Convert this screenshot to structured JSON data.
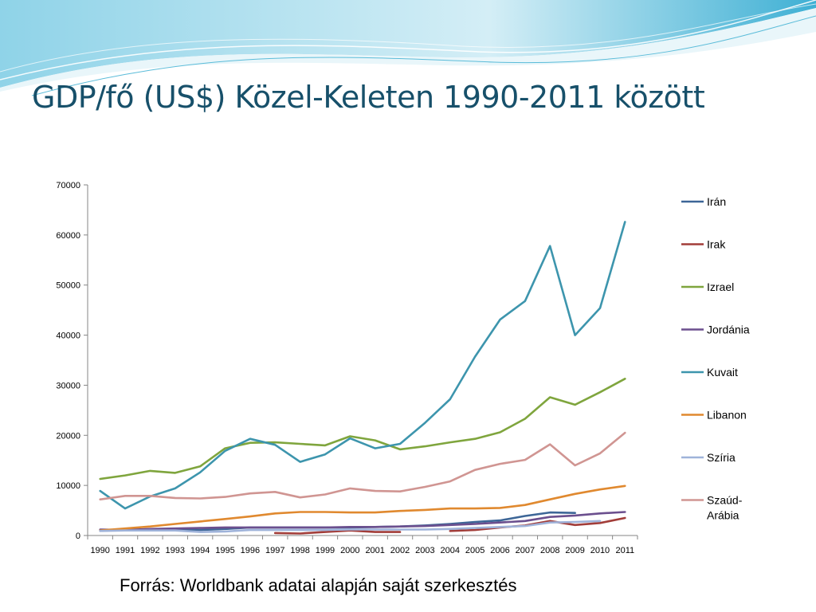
{
  "slide": {
    "title": "GDP/fő (US$) Közel-Keleten 1990-2011 között",
    "source": "Forrás: Worldbank adatai alapján saját szerkesztés"
  },
  "colors": {
    "title": "#17506a",
    "wave_light": "#d4eef6",
    "wave_mid": "#8fd3e8",
    "wave_dark": "#3fb0d4"
  },
  "chart_data": {
    "type": "line",
    "x": [
      "1990",
      "1991",
      "1992",
      "1993",
      "1994",
      "1995",
      "1996",
      "1997",
      "1998",
      "1999",
      "2000",
      "2001",
      "2002",
      "2003",
      "2004",
      "2005",
      "2006",
      "2007",
      "2008",
      "2009",
      "2010",
      "2011"
    ],
    "ylim": [
      0,
      70000
    ],
    "yticks": [
      0,
      10000,
      20000,
      30000,
      40000,
      50000,
      60000,
      70000
    ],
    "grid": false,
    "legend": "right",
    "series": [
      {
        "name": "Irán",
        "color": "#3d6697",
        "values": [
          1100,
          1200,
          1200,
          1200,
          1100,
          1300,
          1600,
          1600,
          1600,
          1600,
          1600,
          1700,
          1800,
          2000,
          2300,
          2700,
          3000,
          3900,
          4600,
          4500,
          null,
          null
        ]
      },
      {
        "name": "Irak",
        "color": "#a23d39",
        "values": [
          null,
          null,
          null,
          null,
          null,
          null,
          null,
          500,
          400,
          700,
          1000,
          700,
          700,
          null,
          900,
          1100,
          1600,
          2000,
          2900,
          2100,
          2500,
          3500
        ]
      },
      {
        "name": "Izrael",
        "color": "#7fa53d",
        "values": [
          11300,
          12000,
          12900,
          12500,
          13800,
          17400,
          18500,
          18600,
          18300,
          18000,
          19800,
          19000,
          17200,
          17800,
          18600,
          19300,
          20600,
          23300,
          27600,
          26100,
          28600,
          31300
        ]
      },
      {
        "name": "Jordánia",
        "color": "#6b4f8e",
        "values": [
          1200,
          1100,
          1300,
          1400,
          1500,
          1600,
          1600,
          1600,
          1600,
          1600,
          1700,
          1700,
          1800,
          1900,
          2100,
          2300,
          2600,
          2900,
          3700,
          4000,
          4400,
          4700
        ]
      },
      {
        "name": "Kuvait",
        "color": "#3d95ad",
        "values": [
          8900,
          5400,
          7800,
          9400,
          12600,
          16900,
          19300,
          18100,
          14700,
          16200,
          19400,
          17400,
          18300,
          22500,
          27200,
          35700,
          43100,
          46800,
          57800,
          40000,
          45400,
          62600
        ]
      },
      {
        "name": "Libanon",
        "color": "#e0892f",
        "values": [
          1000,
          1400,
          1800,
          2300,
          2800,
          3300,
          3800,
          4400,
          4700,
          4700,
          4600,
          4600,
          4900,
          5100,
          5400,
          5400,
          5500,
          6100,
          7200,
          8300,
          9200,
          9900
        ]
      },
      {
        "name": "Szíria",
        "color": "#9fb3da",
        "values": [
          900,
          1000,
          1000,
          1000,
          700,
          800,
          1100,
          1100,
          1100,
          1100,
          1200,
          1200,
          1200,
          1200,
          1300,
          1500,
          1700,
          1900,
          2600,
          2700,
          2900,
          null
        ]
      },
      {
        "name": "Szaúd-Arábia",
        "color": "#d09592",
        "values": [
          7200,
          7900,
          7900,
          7500,
          7400,
          7700,
          8400,
          8700,
          7600,
          8200,
          9400,
          8900,
          8800,
          9700,
          10800,
          13100,
          14300,
          15100,
          18200,
          14000,
          16400,
          20500
        ]
      }
    ]
  }
}
